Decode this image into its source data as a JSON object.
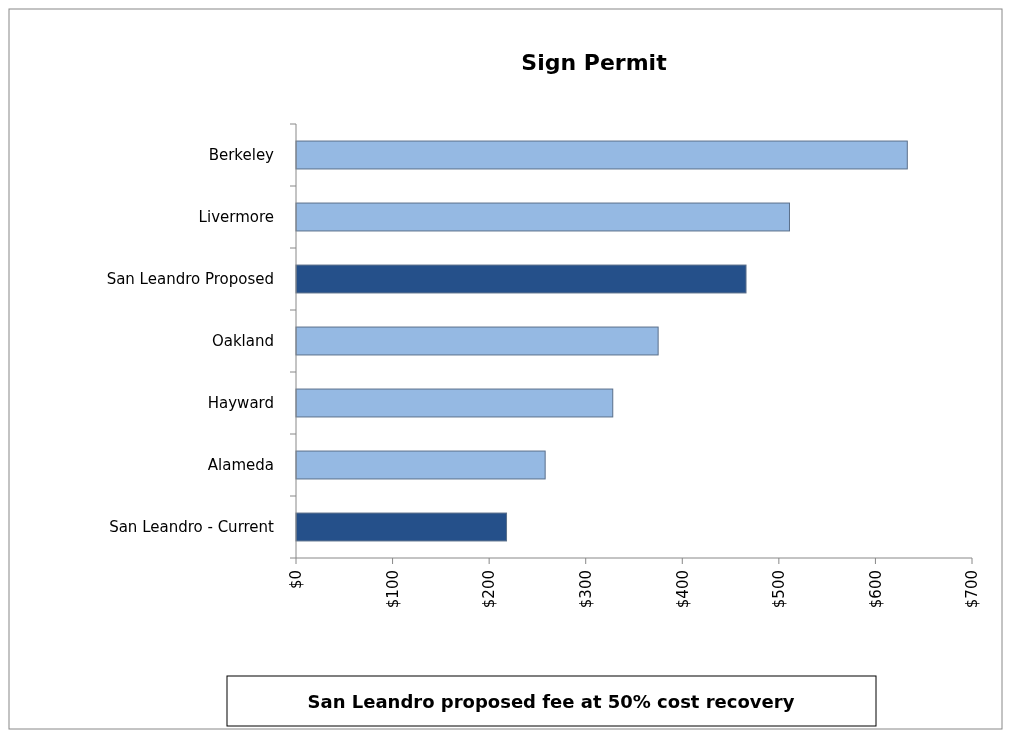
{
  "chart_data": {
    "type": "bar",
    "orientation": "horizontal",
    "title": "Sign Permit",
    "categories": [
      "Berkeley",
      "Livermore",
      "San Leandro Proposed",
      "Oakland",
      "Hayward",
      "Alameda",
      "San Leandro - Current"
    ],
    "values": [
      633,
      511,
      466,
      375,
      328,
      258,
      218
    ],
    "colors": [
      "#95b9e3",
      "#95b9e3",
      "#25508a",
      "#95b9e3",
      "#95b9e3",
      "#95b9e3",
      "#25508a"
    ],
    "xlim": [
      0,
      700
    ],
    "xticks": [
      {
        "value": 0,
        "label": "$0"
      },
      {
        "value": 100,
        "label": "$100"
      },
      {
        "value": 200,
        "label": "$200"
      },
      {
        "value": 300,
        "label": "$300"
      },
      {
        "value": 400,
        "label": "$400"
      },
      {
        "value": 500,
        "label": "$500"
      },
      {
        "value": 600,
        "label": "$600"
      },
      {
        "value": 700,
        "label": "$700"
      }
    ],
    "grid": false,
    "annotations": [
      "San Leandro proposed fee at 50% cost recovery"
    ]
  }
}
